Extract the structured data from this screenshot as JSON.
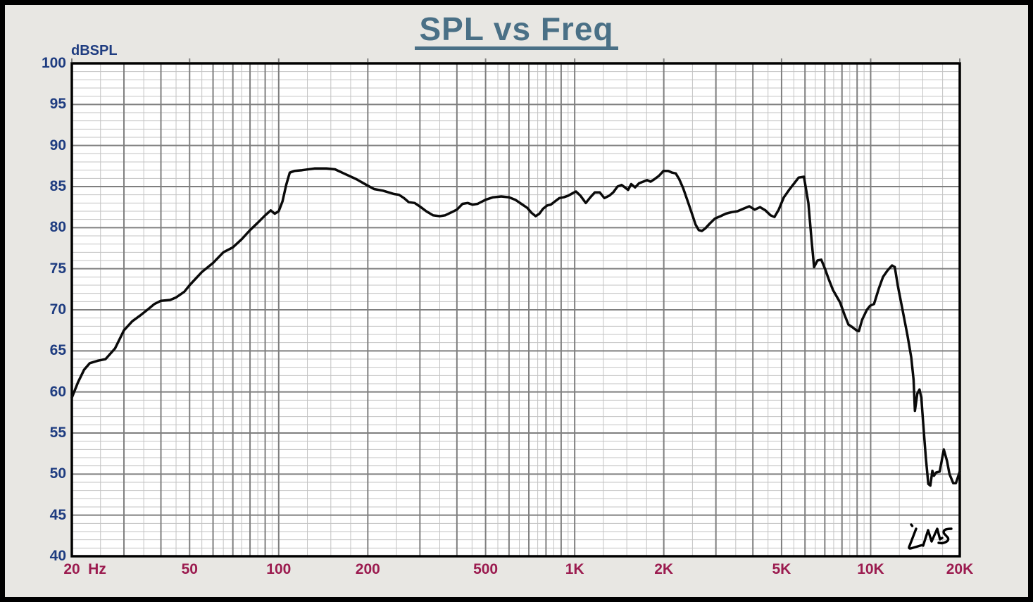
{
  "header": {
    "title": "SPL vs Freq"
  },
  "axes": {
    "y_unit": "dBSPL",
    "x_unit": "Hz"
  },
  "logo": {
    "text": "LMS"
  },
  "colors": {
    "frame": "#000000",
    "page_bg": "#E8E7E3",
    "plot_bg": "#FFFFFF",
    "grid_major": "#7F7F7F",
    "grid_minor": "#C3C3C3",
    "border": "#000000",
    "curve": "#0A0A0A",
    "title": "#4A7086",
    "y_labels": "#1E3C80",
    "x_labels": "#9B1B4F"
  },
  "chart_data": {
    "type": "line",
    "title": "SPL vs Freq",
    "ylabel": "dBSPL",
    "xlabel": "Hz",
    "x_scale": "log",
    "xlim": [
      20,
      20000
    ],
    "ylim": [
      40,
      100
    ],
    "y_major_step": 5,
    "y_minor_step": 1,
    "grid": "major+minor",
    "legend": "none",
    "y_ticks": [
      100,
      95,
      90,
      85,
      80,
      75,
      70,
      65,
      60,
      55,
      50,
      45,
      40
    ],
    "x_ticks": [
      {
        "value": 20,
        "label": "20"
      },
      {
        "value": 50,
        "label": "50"
      },
      {
        "value": 100,
        "label": "100"
      },
      {
        "value": 200,
        "label": "200"
      },
      {
        "value": 500,
        "label": "500"
      },
      {
        "value": 1000,
        "label": "1K"
      },
      {
        "value": 2000,
        "label": "2K"
      },
      {
        "value": 5000,
        "label": "5K"
      },
      {
        "value": 10000,
        "label": "10K"
      },
      {
        "value": 20000,
        "label": "20K"
      }
    ],
    "series": [
      {
        "name": "SPL",
        "color": "#0A0A0A",
        "points": [
          [
            20,
            59.3
          ],
          [
            21,
            61.2
          ],
          [
            22,
            62.7
          ],
          [
            23,
            63.5
          ],
          [
            24.5,
            63.8
          ],
          [
            26,
            64.0
          ],
          [
            28,
            65.3
          ],
          [
            30,
            67.5
          ],
          [
            32,
            68.6
          ],
          [
            34,
            69.3
          ],
          [
            36,
            70.0
          ],
          [
            38,
            70.7
          ],
          [
            40,
            71.1
          ],
          [
            43,
            71.2
          ],
          [
            45,
            71.5
          ],
          [
            48,
            72.2
          ],
          [
            50,
            73.0
          ],
          [
            55,
            74.6
          ],
          [
            60,
            75.7
          ],
          [
            65,
            77.0
          ],
          [
            70,
            77.6
          ],
          [
            75,
            78.6
          ],
          [
            80,
            79.7
          ],
          [
            85,
            80.6
          ],
          [
            90,
            81.5
          ],
          [
            94,
            82.1
          ],
          [
            97,
            81.7
          ],
          [
            100,
            82.0
          ],
          [
            103,
            83.2
          ],
          [
            106,
            85.2
          ],
          [
            109,
            86.7
          ],
          [
            113,
            86.9
          ],
          [
            120,
            87.0
          ],
          [
            132,
            87.2
          ],
          [
            145,
            87.2
          ],
          [
            155,
            87.1
          ],
          [
            166,
            86.6
          ],
          [
            183,
            85.9
          ],
          [
            198,
            85.2
          ],
          [
            210,
            84.7
          ],
          [
            225,
            84.5
          ],
          [
            235,
            84.3
          ],
          [
            245,
            84.1
          ],
          [
            255,
            84.0
          ],
          [
            265,
            83.6
          ],
          [
            275,
            83.1
          ],
          [
            288,
            83.0
          ],
          [
            302,
            82.5
          ],
          [
            315,
            82.0
          ],
          [
            332,
            81.5
          ],
          [
            350,
            81.4
          ],
          [
            365,
            81.5
          ],
          [
            385,
            81.9
          ],
          [
            400,
            82.2
          ],
          [
            418,
            82.9
          ],
          [
            435,
            83.0
          ],
          [
            452,
            82.8
          ],
          [
            470,
            82.9
          ],
          [
            500,
            83.4
          ],
          [
            530,
            83.7
          ],
          [
            565,
            83.8
          ],
          [
            600,
            83.7
          ],
          [
            630,
            83.4
          ],
          [
            660,
            82.9
          ],
          [
            692,
            82.4
          ],
          [
            715,
            81.8
          ],
          [
            738,
            81.4
          ],
          [
            760,
            81.7
          ],
          [
            782,
            82.3
          ],
          [
            808,
            82.7
          ],
          [
            830,
            82.8
          ],
          [
            858,
            83.2
          ],
          [
            888,
            83.6
          ],
          [
            918,
            83.7
          ],
          [
            952,
            83.9
          ],
          [
            985,
            84.2
          ],
          [
            1010,
            84.4
          ],
          [
            1045,
            83.9
          ],
          [
            1090,
            83.0
          ],
          [
            1130,
            83.7
          ],
          [
            1170,
            84.3
          ],
          [
            1215,
            84.3
          ],
          [
            1260,
            83.6
          ],
          [
            1310,
            83.9
          ],
          [
            1350,
            84.3
          ],
          [
            1395,
            85.0
          ],
          [
            1440,
            85.2
          ],
          [
            1478,
            84.9
          ],
          [
            1515,
            84.6
          ],
          [
            1552,
            85.3
          ],
          [
            1600,
            84.9
          ],
          [
            1650,
            85.4
          ],
          [
            1705,
            85.6
          ],
          [
            1755,
            85.8
          ],
          [
            1805,
            85.6
          ],
          [
            1860,
            85.9
          ],
          [
            1925,
            86.3
          ],
          [
            1995,
            86.9
          ],
          [
            2070,
            86.9
          ],
          [
            2135,
            86.7
          ],
          [
            2195,
            86.6
          ],
          [
            2255,
            85.9
          ],
          [
            2325,
            84.8
          ],
          [
            2400,
            83.4
          ],
          [
            2480,
            81.9
          ],
          [
            2560,
            80.4
          ],
          [
            2625,
            79.7
          ],
          [
            2690,
            79.6
          ],
          [
            2760,
            79.9
          ],
          [
            2860,
            80.5
          ],
          [
            2975,
            81.1
          ],
          [
            3110,
            81.4
          ],
          [
            3240,
            81.7
          ],
          [
            3400,
            81.9
          ],
          [
            3550,
            82.0
          ],
          [
            3710,
            82.3
          ],
          [
            3890,
            82.6
          ],
          [
            4060,
            82.2
          ],
          [
            4230,
            82.5
          ],
          [
            4410,
            82.1
          ],
          [
            4590,
            81.5
          ],
          [
            4730,
            81.3
          ],
          [
            4890,
            82.2
          ],
          [
            5090,
            83.7
          ],
          [
            5300,
            84.6
          ],
          [
            5490,
            85.3
          ],
          [
            5710,
            86.1
          ],
          [
            5950,
            86.2
          ],
          [
            6160,
            83.0
          ],
          [
            6310,
            78.6
          ],
          [
            6440,
            75.2
          ],
          [
            6610,
            76.0
          ],
          [
            6810,
            76.1
          ],
          [
            7010,
            75.0
          ],
          [
            7220,
            73.7
          ],
          [
            7460,
            72.4
          ],
          [
            7880,
            70.9
          ],
          [
            8160,
            69.4
          ],
          [
            8410,
            68.2
          ],
          [
            8660,
            67.9
          ],
          [
            8960,
            67.5
          ],
          [
            9120,
            67.4
          ],
          [
            9360,
            68.8
          ],
          [
            9710,
            70.0
          ],
          [
            9960,
            70.5
          ],
          [
            10260,
            70.7
          ],
          [
            10660,
            72.6
          ],
          [
            11010,
            74.0
          ],
          [
            11410,
            74.8
          ],
          [
            11810,
            75.4
          ],
          [
            12060,
            75.2
          ],
          [
            12360,
            72.9
          ],
          [
            12810,
            70.0
          ],
          [
            13310,
            66.9
          ],
          [
            13710,
            64.2
          ],
          [
            13960,
            61.5
          ],
          [
            14110,
            57.7
          ],
          [
            14370,
            59.8
          ],
          [
            14620,
            60.3
          ],
          [
            14830,
            59.3
          ],
          [
            15060,
            56.0
          ],
          [
            15360,
            52.0
          ],
          [
            15660,
            48.8
          ],
          [
            15910,
            48.6
          ],
          [
            16160,
            50.4
          ],
          [
            16360,
            49.8
          ],
          [
            16660,
            50.2
          ],
          [
            17110,
            50.3
          ],
          [
            17660,
            53.0
          ],
          [
            18110,
            51.6
          ],
          [
            18460,
            50.0
          ],
          [
            19010,
            48.9
          ],
          [
            19410,
            48.9
          ],
          [
            20000,
            50.3
          ]
        ]
      }
    ]
  }
}
